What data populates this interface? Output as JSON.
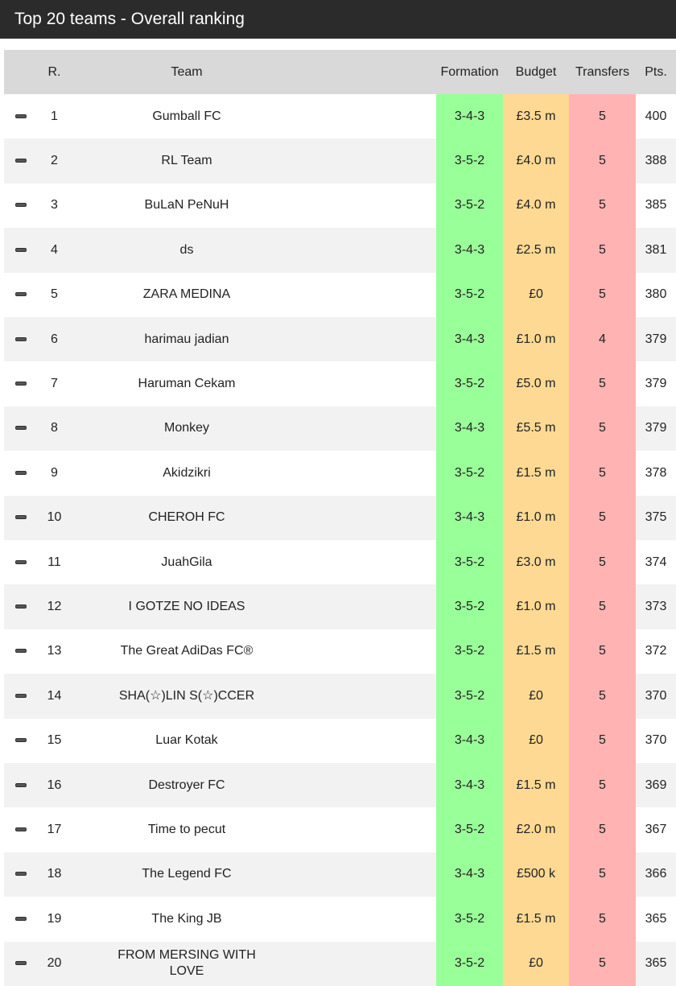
{
  "header": {
    "title": "Top 20 teams - Overall ranking"
  },
  "table": {
    "columns": [
      "R.",
      "Team",
      "Formation",
      "Budget",
      "Transfers",
      "Pts."
    ],
    "rows": [
      [
        1,
        "Gumball FC",
        "3-4-3",
        "£3.5 m",
        5,
        400
      ],
      [
        2,
        "RL Team",
        "3-5-2",
        "£4.0 m",
        5,
        388
      ],
      [
        3,
        "BuLaN PeNuH",
        "3-5-2",
        "£4.0 m",
        5,
        385
      ],
      [
        4,
        "ds",
        "3-4-3",
        "£2.5 m",
        5,
        381
      ],
      [
        5,
        "ZARA MEDINA",
        "3-5-2",
        "£0",
        5,
        380
      ],
      [
        6,
        "harimau jadian",
        "3-4-3",
        "£1.0 m",
        4,
        379
      ],
      [
        7,
        "Haruman Cekam",
        "3-5-2",
        "£5.0 m",
        5,
        379
      ],
      [
        8,
        "Monkey",
        "3-4-3",
        "£5.5 m",
        5,
        379
      ],
      [
        9,
        "Akidzikri",
        "3-5-2",
        "£1.5 m",
        5,
        378
      ],
      [
        10,
        "CHEROH FC",
        "3-4-3",
        "£1.0 m",
        5,
        375
      ],
      [
        11,
        "JuahGila",
        "3-5-2",
        "£3.0 m",
        5,
        374
      ],
      [
        12,
        "I GOTZE NO IDEAS",
        "3-5-2",
        "£1.0 m",
        5,
        373
      ],
      [
        13,
        "The Great AdiDas FC®",
        "3-5-2",
        "£1.5 m",
        5,
        372
      ],
      [
        14,
        "SHA(☆)LIN S(☆)CCER",
        "3-5-2",
        "£0",
        5,
        370
      ],
      [
        15,
        "Luar Kotak",
        "3-4-3",
        "£0",
        5,
        370
      ],
      [
        16,
        "Destroyer FC",
        "3-4-3",
        "£1.5 m",
        5,
        369
      ],
      [
        17,
        "Time to pecut",
        "3-5-2",
        "£2.0 m",
        5,
        367
      ],
      [
        18,
        "The Legend FC",
        "3-4-3",
        "£500 k",
        5,
        366
      ],
      [
        19,
        "The King JB",
        "3-5-2",
        "£1.5 m",
        5,
        365
      ],
      [
        20,
        "FROM MERSING WITH LOVE",
        "3-5-2",
        "£0",
        5,
        365
      ]
    ]
  }
}
